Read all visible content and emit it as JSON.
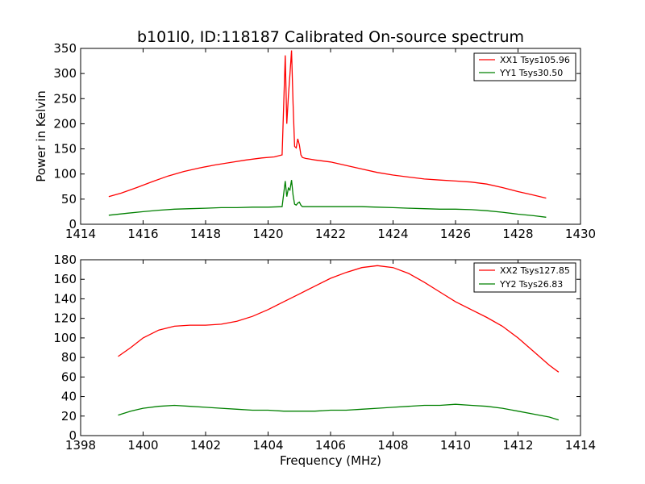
{
  "chart_data": [
    {
      "type": "line",
      "title": "b101l0, ID:118187 Calibrated On-source spectrum",
      "xlabel": "",
      "ylabel": "Power in Kelvin",
      "xlim": [
        1414,
        1430
      ],
      "ylim": [
        0,
        350
      ],
      "xticks": [
        "1414",
        "1416",
        "1418",
        "1420",
        "1422",
        "1424",
        "1426",
        "1428",
        "1430"
      ],
      "yticks": [
        "0",
        "50",
        "100",
        "150",
        "200",
        "250",
        "300",
        "350"
      ],
      "grid": false,
      "legend_position": "top-right",
      "series": [
        {
          "name": "XX1 Tsys105.96",
          "color": "#ff0000",
          "x": [
            1414.9,
            1415.3,
            1415.8,
            1416.3,
            1416.8,
            1417.3,
            1417.8,
            1418.3,
            1418.8,
            1419.3,
            1419.8,
            1420.2,
            1420.45,
            1420.55,
            1420.6,
            1420.65,
            1420.7,
            1420.75,
            1420.8,
            1420.85,
            1420.9,
            1420.95,
            1421.0,
            1421.05,
            1421.1,
            1421.2,
            1421.3,
            1421.5,
            1422.0,
            1422.5,
            1423.0,
            1423.5,
            1424.0,
            1424.5,
            1425.0,
            1425.5,
            1426.0,
            1426.5,
            1427.0,
            1427.5,
            1428.0,
            1428.5,
            1428.9
          ],
          "y": [
            55,
            62,
            73,
            85,
            96,
            105,
            112,
            118,
            123,
            128,
            132,
            134,
            138,
            336,
            200,
            255,
            298,
            346,
            240,
            155,
            152,
            170,
            158,
            138,
            133,
            131,
            130,
            128,
            124,
            117,
            110,
            103,
            98,
            94,
            90,
            88,
            86,
            84,
            80,
            73,
            65,
            58,
            52
          ]
        },
        {
          "name": "YY1 Tsys30.50",
          "color": "#008000",
          "x": [
            1414.9,
            1415.5,
            1416.0,
            1416.5,
            1417.0,
            1417.5,
            1418.0,
            1418.5,
            1419.0,
            1419.5,
            1420.0,
            1420.45,
            1420.55,
            1420.6,
            1420.65,
            1420.7,
            1420.75,
            1420.8,
            1420.85,
            1420.9,
            1420.95,
            1421.0,
            1421.05,
            1421.1,
            1421.5,
            1422.0,
            1422.5,
            1423.0,
            1423.5,
            1424.0,
            1424.5,
            1425.0,
            1425.5,
            1426.0,
            1426.5,
            1427.0,
            1427.5,
            1428.0,
            1428.5,
            1428.9
          ],
          "y": [
            18,
            22,
            25,
            28,
            30,
            31,
            32,
            33,
            33,
            34,
            34,
            35,
            86,
            55,
            72,
            68,
            88,
            58,
            40,
            38,
            42,
            44,
            38,
            35,
            35,
            35,
            35,
            35,
            34,
            33,
            32,
            31,
            30,
            30,
            29,
            27,
            24,
            20,
            17,
            14
          ]
        }
      ]
    },
    {
      "type": "line",
      "title": "",
      "xlabel": "Frequency (MHz)",
      "ylabel": "",
      "xlim": [
        1398,
        1414
      ],
      "ylim": [
        0,
        180
      ],
      "xticks": [
        "1398",
        "1400",
        "1402",
        "1404",
        "1406",
        "1408",
        "1410",
        "1412",
        "1414"
      ],
      "yticks": [
        "0",
        "20",
        "40",
        "60",
        "80",
        "100",
        "120",
        "140",
        "160",
        "180"
      ],
      "grid": false,
      "legend_position": "top-right",
      "series": [
        {
          "name": "XX2 Tsys127.85",
          "color": "#ff0000",
          "x": [
            1399.2,
            1399.6,
            1400.0,
            1400.5,
            1401.0,
            1401.5,
            1402.0,
            1402.5,
            1403.0,
            1403.5,
            1404.0,
            1404.5,
            1405.0,
            1405.5,
            1406.0,
            1406.5,
            1407.0,
            1407.5,
            1408.0,
            1408.5,
            1409.0,
            1409.5,
            1410.0,
            1410.5,
            1411.0,
            1411.5,
            1412.0,
            1412.5,
            1413.0,
            1413.3
          ],
          "y": [
            81,
            90,
            100,
            108,
            112,
            113,
            113,
            114,
            117,
            122,
            129,
            137,
            145,
            153,
            161,
            167,
            172,
            174,
            172,
            166,
            157,
            147,
            137,
            129,
            121,
            112,
            100,
            86,
            72,
            65
          ]
        },
        {
          "name": "YY2 Tsys26.83",
          "color": "#008000",
          "x": [
            1399.2,
            1399.6,
            1400.0,
            1400.5,
            1401.0,
            1401.5,
            1402.0,
            1402.5,
            1403.0,
            1403.5,
            1404.0,
            1404.5,
            1405.0,
            1405.5,
            1406.0,
            1406.5,
            1407.0,
            1407.5,
            1408.0,
            1408.5,
            1409.0,
            1409.5,
            1410.0,
            1410.5,
            1411.0,
            1411.5,
            1412.0,
            1412.5,
            1413.0,
            1413.3
          ],
          "y": [
            21,
            25,
            28,
            30,
            31,
            30,
            29,
            28,
            27,
            26,
            26,
            25,
            25,
            25,
            26,
            26,
            27,
            28,
            29,
            30,
            31,
            31,
            32,
            31,
            30,
            28,
            25,
            22,
            19,
            16
          ]
        }
      ]
    }
  ]
}
